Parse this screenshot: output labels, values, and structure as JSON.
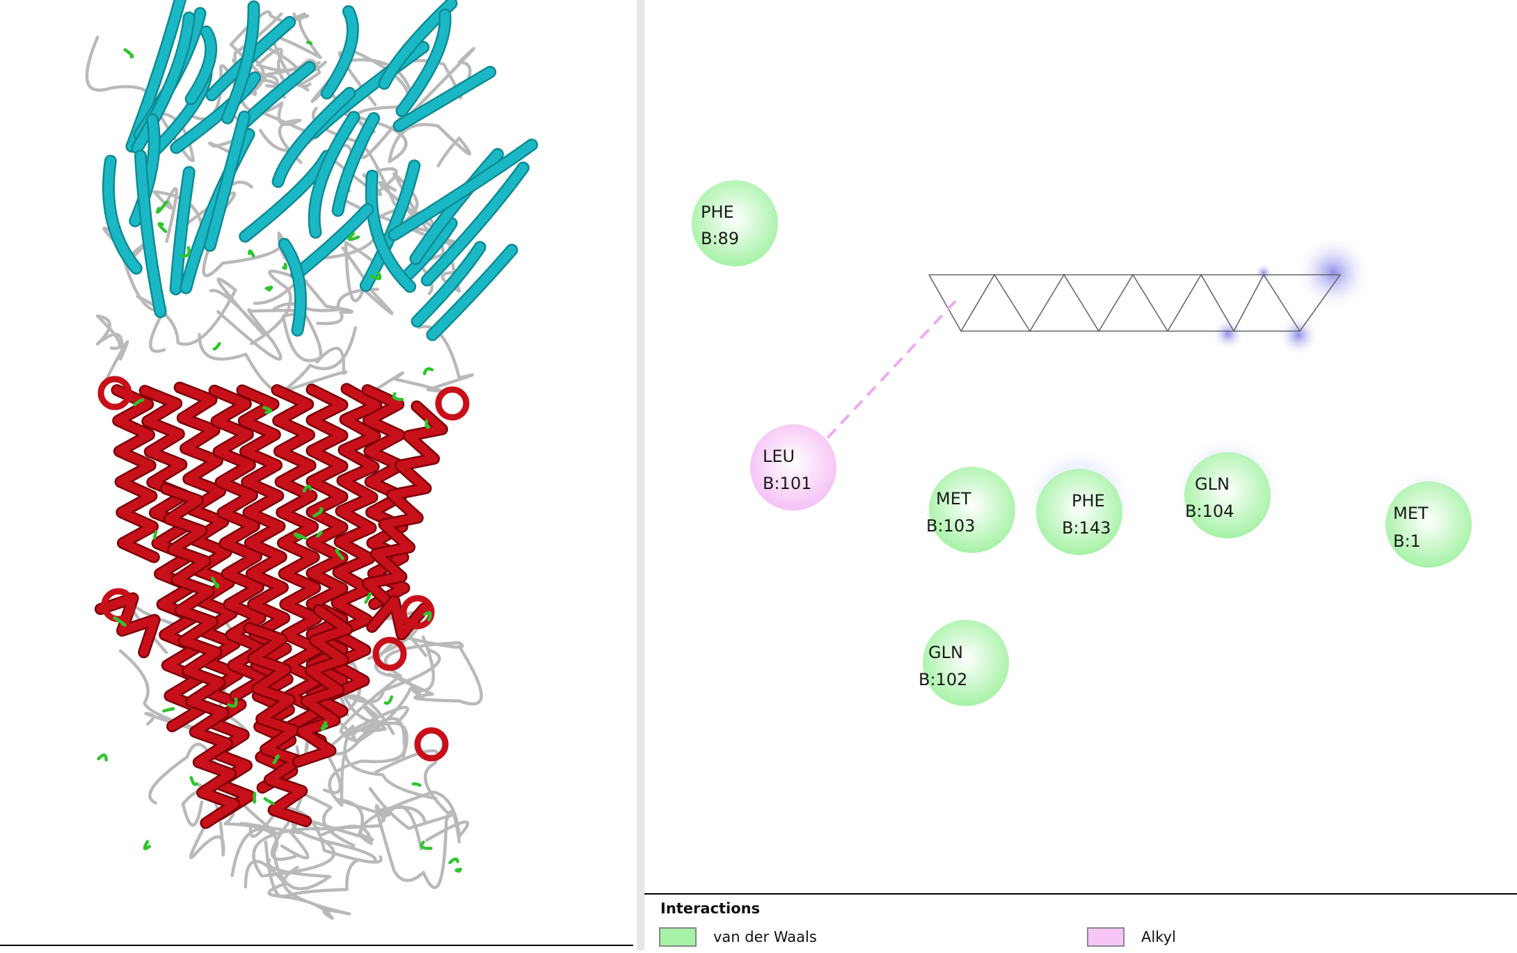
{
  "colors": {
    "van_der_waals": "#a6f2a6",
    "alkyl": "#f7c6f7",
    "helix": "#c8101a",
    "sheet": "#1ab8c4",
    "coil": "#b9b9b9",
    "turn": "#2ec42e"
  },
  "residues": [
    {
      "name": "PHE",
      "id": "B:89",
      "type": "van_der_waals"
    },
    {
      "name": "LEU",
      "id": "B:101",
      "type": "alkyl"
    },
    {
      "name": "MET",
      "id": "B:103",
      "type": "van_der_waals"
    },
    {
      "name": "PHE",
      "id": "B:143",
      "type": "van_der_waals"
    },
    {
      "name": "GLN",
      "id": "B:104",
      "type": "van_der_waals"
    },
    {
      "name": "MET",
      "id": "B:1",
      "type": "van_der_waals"
    },
    {
      "name": "GLN",
      "id": "B:102",
      "type": "van_der_waals"
    }
  ],
  "legend": {
    "title": "Interactions",
    "items": [
      {
        "label": "van der Waals",
        "type": "van_der_waals"
      },
      {
        "label": "Alkyl",
        "type": "alkyl"
      }
    ]
  }
}
